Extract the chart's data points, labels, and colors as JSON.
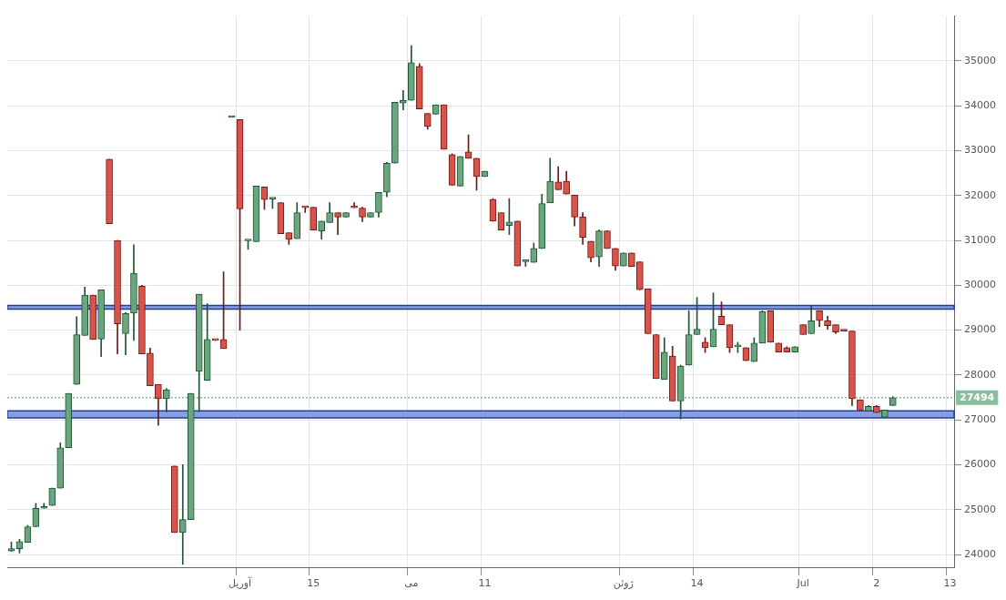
{
  "chart_data": {
    "type": "candlestick",
    "categories": [
      null,
      null,
      null,
      null,
      null,
      null,
      null,
      null,
      null,
      null,
      null,
      null,
      null,
      null,
      null,
      null,
      null,
      null,
      null,
      null,
      null,
      null,
      null,
      null,
      null,
      null,
      null,
      null,
      "آوریل",
      null,
      null,
      null,
      null,
      null,
      null,
      null,
      null,
      "15",
      null,
      null,
      null,
      null,
      null,
      null,
      null,
      null,
      null,
      null,
      null,
      "می",
      null,
      null,
      null,
      null,
      null,
      null,
      null,
      null,
      "11",
      null,
      null,
      null,
      null,
      null,
      null,
      null,
      null,
      null,
      null,
      null,
      null,
      null,
      null,
      null,
      null,
      "ژوئن",
      null,
      null,
      null,
      null,
      null,
      null,
      null,
      null,
      "14",
      null,
      null,
      null,
      null,
      null,
      null,
      null,
      null,
      null,
      null,
      null,
      null,
      "Jul",
      null,
      null,
      null,
      null,
      null,
      null,
      null,
      null,
      "2",
      null,
      null,
      null,
      null,
      null,
      null,
      null,
      null,
      "13"
    ],
    "ohlc": [
      [
        24080,
        24280,
        24070,
        24130
      ],
      [
        24130,
        24340,
        24030,
        24290
      ],
      [
        24270,
        24650,
        24270,
        24620
      ],
      [
        24620,
        25140,
        24620,
        25030
      ],
      [
        25030,
        25140,
        25030,
        25070
      ],
      [
        25090,
        25480,
        25090,
        25480
      ],
      [
        25480,
        26490,
        25480,
        26380
      ],
      [
        26380,
        27590,
        26380,
        27590
      ],
      [
        27790,
        29300,
        27790,
        28900
      ],
      [
        28880,
        29960,
        28880,
        29780
      ],
      [
        29780,
        29780,
        28790,
        28790
      ],
      [
        28800,
        29900,
        28410,
        29900
      ],
      [
        32810,
        32810,
        31370,
        31370
      ],
      [
        31000,
        31000,
        28470,
        29140
      ],
      [
        28920,
        29390,
        28450,
        29370
      ],
      [
        29380,
        30900,
        28770,
        30270
      ],
      [
        29980,
        30000,
        28470,
        28470
      ],
      [
        28490,
        28600,
        27760,
        27760
      ],
      [
        27790,
        27790,
        26880,
        27470
      ],
      [
        27470,
        27700,
        27180,
        27670
      ],
      [
        25970,
        25970,
        24490,
        24490
      ],
      [
        24490,
        26000,
        23780,
        24780
      ],
      [
        24780,
        27590,
        24780,
        27590
      ],
      [
        28080,
        29800,
        27180,
        29800
      ],
      [
        27880,
        29590,
        27880,
        28790
      ],
      [
        28780,
        28780,
        28770,
        28770
      ],
      [
        28790,
        30300,
        28590,
        28590
      ],
      [
        33740,
        33740,
        33740,
        33740
      ],
      [
        33690,
        33690,
        29000,
        31700
      ],
      [
        30990,
        31000,
        30800,
        31000
      ],
      [
        30970,
        32210,
        30970,
        32210
      ],
      [
        32190,
        32190,
        31690,
        31910
      ],
      [
        31920,
        31920,
        31710,
        31920
      ],
      [
        31840,
        31840,
        31150,
        31150
      ],
      [
        31170,
        31170,
        30910,
        31020
      ],
      [
        31040,
        31840,
        31040,
        31620
      ],
      [
        31735,
        31735,
        31620,
        31730
      ],
      [
        31740,
        31740,
        31230,
        31230
      ],
      [
        31210,
        31430,
        31030,
        31430
      ],
      [
        31400,
        31840,
        31400,
        31620
      ],
      [
        31620,
        31620,
        31130,
        31520
      ],
      [
        31520,
        31620,
        31520,
        31620
      ],
      [
        31735,
        31840,
        31730,
        31730
      ],
      [
        31720,
        31740,
        31420,
        31520
      ],
      [
        31520,
        31620,
        31520,
        31620
      ],
      [
        31620,
        32070,
        31520,
        32070
      ],
      [
        32070,
        32740,
        31970,
        32720
      ],
      [
        32720,
        34080,
        32720,
        34080
      ],
      [
        34060,
        34340,
        33910,
        34120
      ],
      [
        34120,
        35340,
        34120,
        34960
      ],
      [
        34880,
        34940,
        33930,
        33930
      ],
      [
        33830,
        33830,
        33480,
        33540
      ],
      [
        33810,
        34020,
        33810,
        34020
      ],
      [
        34020,
        34020,
        33030,
        33030
      ],
      [
        32910,
        32930,
        32230,
        32230
      ],
      [
        32210,
        32870,
        32210,
        32870
      ],
      [
        32970,
        33350,
        32830,
        32830
      ],
      [
        32830,
        32830,
        32120,
        32420
      ],
      [
        32420,
        32540,
        32420,
        32540
      ],
      [
        31910,
        31930,
        31430,
        31430
      ],
      [
        31620,
        31620,
        31230,
        31230
      ],
      [
        31330,
        31930,
        31130,
        31410
      ],
      [
        31430,
        31430,
        30430,
        30430
      ],
      [
        30525,
        30530,
        30420,
        30530
      ],
      [
        30510,
        30940,
        30510,
        30820
      ],
      [
        30820,
        32030,
        30820,
        31820
      ],
      [
        31840,
        32830,
        31840,
        32320
      ],
      [
        32300,
        32640,
        32130,
        32130
      ],
      [
        32320,
        32540,
        32030,
        32030
      ],
      [
        32010,
        32010,
        31320,
        31520
      ],
      [
        31520,
        31620,
        30910,
        31070
      ],
      [
        30980,
        30980,
        30520,
        30610
      ],
      [
        30630,
        31230,
        30420,
        31210
      ],
      [
        31210,
        31210,
        30820,
        30820
      ],
      [
        30820,
        30820,
        30330,
        30430
      ],
      [
        30430,
        30720,
        30430,
        30720
      ],
      [
        30720,
        30720,
        30420,
        30420
      ],
      [
        30520,
        30520,
        29900,
        29900
      ],
      [
        29920,
        29920,
        28920,
        28920
      ],
      [
        28900,
        28900,
        27920,
        27920
      ],
      [
        27900,
        28830,
        27900,
        28510
      ],
      [
        28420,
        28640,
        27420,
        27420
      ],
      [
        27420,
        28220,
        27020,
        28200
      ],
      [
        28220,
        29430,
        28220,
        28900
      ],
      [
        28900,
        29730,
        28900,
        29020
      ],
      [
        28730,
        28830,
        28500,
        28610
      ],
      [
        28630,
        29830,
        28630,
        29020
      ],
      [
        29310,
        29630,
        29120,
        29120
      ],
      [
        29120,
        29120,
        28500,
        28610
      ],
      [
        28630,
        28730,
        28500,
        28630
      ],
      [
        28610,
        28610,
        28320,
        28320
      ],
      [
        28300,
        28830,
        28300,
        28710
      ],
      [
        28710,
        29430,
        28710,
        29410
      ],
      [
        29430,
        29430,
        28730,
        28730
      ],
      [
        28710,
        28710,
        28510,
        28510
      ],
      [
        28610,
        28630,
        28510,
        28510
      ],
      [
        28510,
        28630,
        28510,
        28630
      ],
      [
        29120,
        29120,
        28900,
        28900
      ],
      [
        28920,
        29550,
        28920,
        29210
      ],
      [
        29430,
        29430,
        29080,
        29210
      ],
      [
        29210,
        29310,
        29020,
        29100
      ],
      [
        29120,
        29120,
        28920,
        28960
      ],
      [
        28985,
        28985,
        28980,
        28980
      ],
      [
        28980,
        28980,
        27320,
        27470
      ],
      [
        27450,
        27450,
        27220,
        27220
      ],
      [
        27200,
        27320,
        27200,
        27300
      ],
      [
        27300,
        27320,
        27160,
        27160
      ],
      [
        27060,
        27220,
        27060,
        27220
      ],
      [
        27320,
        27520,
        27320,
        27494
      ],
      null,
      null,
      null,
      null,
      null,
      null,
      null
    ],
    "ylim": [
      23700,
      36000
    ],
    "yticks": [
      24000,
      25000,
      26000,
      27000,
      28000,
      29000,
      30000,
      31000,
      32000,
      33000,
      34000,
      35000
    ],
    "grid": true,
    "legend": false,
    "ref_lines": [
      {
        "axis": "y",
        "value": 27494,
        "label": "27494",
        "color": "#4d9e6e",
        "line_style": "dotted"
      }
    ],
    "bands": [
      {
        "axis": "y",
        "from": 29470,
        "to": 29550,
        "color": "#6b86d6"
      },
      {
        "axis": "y",
        "from": 27045,
        "to": 27200,
        "color": "#6b86d6"
      }
    ]
  }
}
